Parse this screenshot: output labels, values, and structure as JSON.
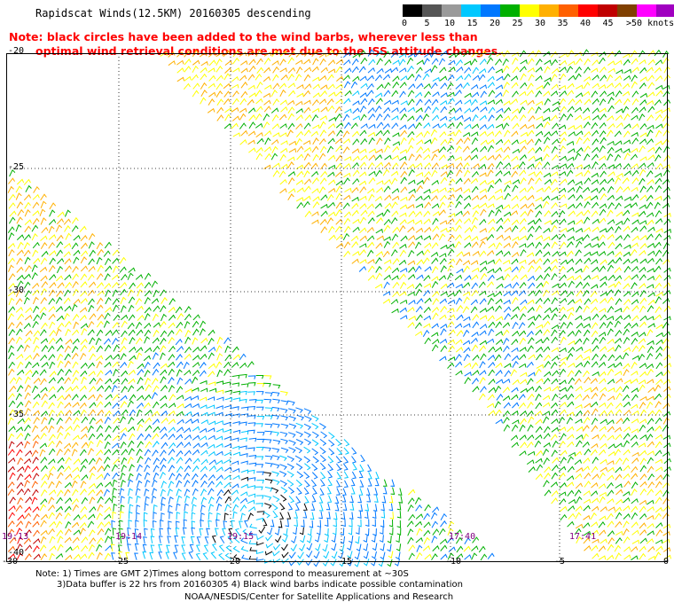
{
  "title": "Rapidscat Winds(12.5KM) 20160305 descending",
  "note_line1": "Note: black circles have been added to the wind barbs, wherever less than",
  "note_line2": "optimal wind retrieval conditions are met due to the ISS attitude changes.",
  "colorbar": {
    "labels": [
      "0",
      "5",
      "10",
      "15",
      "20",
      "25",
      "30",
      "35",
      "40",
      "45"
    ],
    "unit": ">50 knots",
    "colors": [
      "#000000",
      "#555555",
      "#9a9a9a",
      "#00c8ff",
      "#0078ff",
      "#00b000",
      "#ffff00",
      "#ffb000",
      "#ff6000",
      "#ff0000",
      "#c00000",
      "#804000",
      "#ff00ff",
      "#a000c0"
    ]
  },
  "lat_labels": [
    "-20",
    "-25",
    "-30",
    "-35",
    "-40"
  ],
  "lon_labels": [
    "-30",
    "-25",
    "-20",
    "-15",
    "-10",
    "-5",
    "0"
  ],
  "time_labels": [
    "19:13",
    "19:14",
    "19:15",
    "17:40",
    "17:41"
  ],
  "footer": {
    "line1": "Note: 1) Times are GMT 2)Times along bottom correspond to measurement at ~30S",
    "line2": "3)Data buffer is 22 hrs from 20160305 4) Black wind barbs indicate possible contamination",
    "line3": "NOAA/NESDIS/Center for Satellite Applications and Research"
  }
}
